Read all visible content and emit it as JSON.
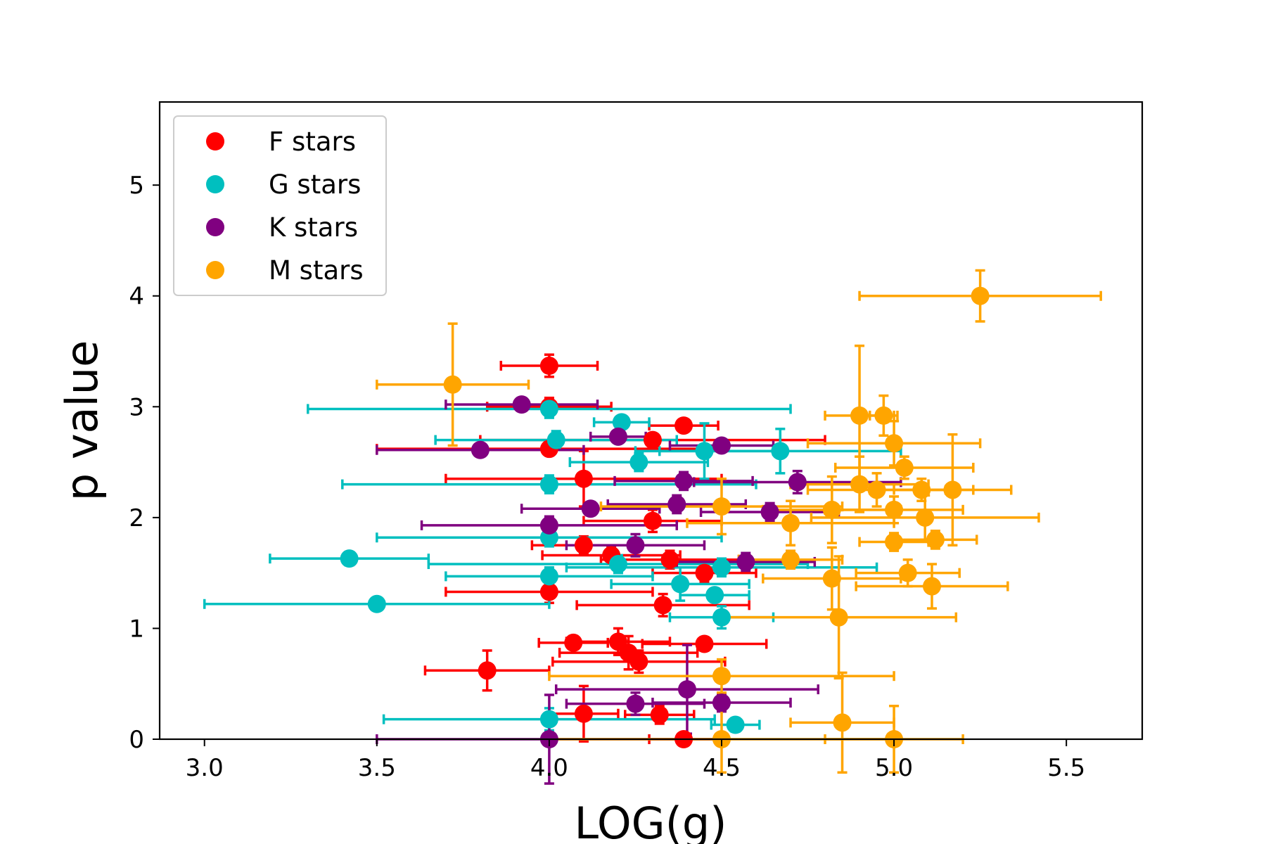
{
  "chart_data": {
    "type": "scatter",
    "title": "",
    "xlabel": "LOG(g)",
    "ylabel": "p value",
    "xlim": [
      2.87,
      5.72
    ],
    "ylim": [
      0,
      5.75
    ],
    "xticks": [
      "3.0",
      "3.5",
      "4.0",
      "4.5",
      "5.0",
      "5.5"
    ],
    "yticks": [
      "0",
      "1",
      "2",
      "3",
      "4",
      "5"
    ],
    "grid": false,
    "legend_position": "top-left",
    "series": [
      {
        "name": "F stars",
        "color": "#ff0000",
        "points": [
          {
            "x": 4.0,
            "y": 3.37,
            "xerr": 0.14,
            "yerr": 0.1
          },
          {
            "x": 4.0,
            "y": 3.0,
            "xerr": 0.18,
            "yerr": 0.08
          },
          {
            "x": 4.39,
            "y": 2.83,
            "xerr": 0.1,
            "yerr": 0.05
          },
          {
            "x": 4.1,
            "y": 2.35,
            "xerr": 0.4,
            "yerr": 0.25
          },
          {
            "x": 4.3,
            "y": 2.7,
            "xerr": 0.5,
            "yerr": 0.05
          },
          {
            "x": 4.0,
            "y": 2.62,
            "xerr": 0.5,
            "yerr": 0.06
          },
          {
            "x": 4.3,
            "y": 1.97,
            "xerr": 0.2,
            "yerr": 0.1
          },
          {
            "x": 4.1,
            "y": 1.75,
            "xerr": 0.15,
            "yerr": 0.08
          },
          {
            "x": 4.18,
            "y": 1.66,
            "xerr": 0.2,
            "yerr": 0.08
          },
          {
            "x": 4.35,
            "y": 1.62,
            "xerr": 0.2,
            "yerr": 0.08
          },
          {
            "x": 4.0,
            "y": 1.33,
            "xerr": 0.3,
            "yerr": 0.1
          },
          {
            "x": 4.33,
            "y": 1.21,
            "xerr": 0.25,
            "yerr": 0.1
          },
          {
            "x": 4.45,
            "y": 1.5,
            "xerr": 0.15,
            "yerr": 0.08
          },
          {
            "x": 4.07,
            "y": 0.87,
            "xerr": 0.1,
            "yerr": 0.06
          },
          {
            "x": 4.2,
            "y": 0.88,
            "xerr": 0.15,
            "yerr": 0.12
          },
          {
            "x": 4.23,
            "y": 0.78,
            "xerr": 0.2,
            "yerr": 0.15
          },
          {
            "x": 4.26,
            "y": 0.7,
            "xerr": 0.25,
            "yerr": 0.1
          },
          {
            "x": 4.45,
            "y": 0.86,
            "xerr": 0.18,
            "yerr": 0.06
          },
          {
            "x": 3.82,
            "y": 0.62,
            "xerr": 0.18,
            "yerr": 0.18
          },
          {
            "x": 4.1,
            "y": 0.23,
            "xerr": 0.1,
            "yerr": 0.25
          },
          {
            "x": 4.32,
            "y": 0.22,
            "xerr": 0.1,
            "yerr": 0.08
          },
          {
            "x": 4.39,
            "y": 0.0,
            "xerr": 0.1,
            "yerr": 0.05
          }
        ]
      },
      {
        "name": "G stars",
        "color": "#00bfbf",
        "points": [
          {
            "x": 4.0,
            "y": 2.98,
            "xerr": 0.7,
            "yerr": 0.08
          },
          {
            "x": 4.21,
            "y": 2.86,
            "xerr": 0.08,
            "yerr": 0.05
          },
          {
            "x": 4.02,
            "y": 2.7,
            "xerr": 0.35,
            "yerr": 0.08
          },
          {
            "x": 4.26,
            "y": 2.5,
            "xerr": 0.2,
            "yerr": 0.08
          },
          {
            "x": 4.67,
            "y": 2.6,
            "xerr": 0.35,
            "yerr": 0.2
          },
          {
            "x": 4.45,
            "y": 2.6,
            "xerr": 0.2,
            "yerr": 0.25
          },
          {
            "x": 4.0,
            "y": 2.3,
            "xerr": 0.6,
            "yerr": 0.08
          },
          {
            "x": 4.0,
            "y": 1.82,
            "xerr": 0.5,
            "yerr": 0.08
          },
          {
            "x": 3.42,
            "y": 1.63,
            "xerr": 0.23,
            "yerr": 0.06
          },
          {
            "x": 4.2,
            "y": 1.58,
            "xerr": 0.55,
            "yerr": 0.08
          },
          {
            "x": 4.0,
            "y": 1.47,
            "xerr": 0.3,
            "yerr": 0.08
          },
          {
            "x": 4.5,
            "y": 1.55,
            "xerr": 0.45,
            "yerr": 0.08
          },
          {
            "x": 4.38,
            "y": 1.4,
            "xerr": 0.2,
            "yerr": 0.15
          },
          {
            "x": 4.48,
            "y": 1.3,
            "xerr": 0.1,
            "yerr": 0.06
          },
          {
            "x": 3.5,
            "y": 1.22,
            "xerr": 0.5,
            "yerr": 0.05
          },
          {
            "x": 4.5,
            "y": 1.1,
            "xerr": 0.15,
            "yerr": 0.1
          },
          {
            "x": 4.54,
            "y": 0.13,
            "xerr": 0.07,
            "yerr": 0.06
          },
          {
            "x": 4.0,
            "y": 0.18,
            "xerr": 0.48,
            "yerr": 0.1
          }
        ]
      },
      {
        "name": "K stars",
        "color": "#800080",
        "points": [
          {
            "x": 3.92,
            "y": 3.02,
            "xerr": 0.22,
            "yerr": 0.05
          },
          {
            "x": 3.8,
            "y": 2.61,
            "xerr": 0.3,
            "yerr": 0.05
          },
          {
            "x": 4.2,
            "y": 2.73,
            "xerr": 0.08,
            "yerr": 0.05
          },
          {
            "x": 4.5,
            "y": 2.65,
            "xerr": 0.15,
            "yerr": 0.05
          },
          {
            "x": 4.39,
            "y": 2.33,
            "xerr": 0.2,
            "yerr": 0.08
          },
          {
            "x": 4.12,
            "y": 2.08,
            "xerr": 0.2,
            "yerr": 0.06
          },
          {
            "x": 4.37,
            "y": 2.12,
            "xerr": 0.2,
            "yerr": 0.08
          },
          {
            "x": 4.64,
            "y": 2.05,
            "xerr": 0.2,
            "yerr": 0.08
          },
          {
            "x": 4.72,
            "y": 2.32,
            "xerr": 0.3,
            "yerr": 0.1
          },
          {
            "x": 4.0,
            "y": 1.93,
            "xerr": 0.37,
            "yerr": 0.08
          },
          {
            "x": 4.25,
            "y": 1.75,
            "xerr": 0.2,
            "yerr": 0.1
          },
          {
            "x": 4.57,
            "y": 1.6,
            "xerr": 0.2,
            "yerr": 0.08
          },
          {
            "x": 4.4,
            "y": 0.45,
            "xerr": 0.38,
            "yerr": 0.4
          },
          {
            "x": 4.25,
            "y": 0.32,
            "xerr": 0.2,
            "yerr": 0.1
          },
          {
            "x": 4.5,
            "y": 0.33,
            "xerr": 0.2,
            "yerr": 0.08
          },
          {
            "x": 4.0,
            "y": 0.0,
            "xerr": 0.5,
            "yerr": 0.4
          }
        ]
      },
      {
        "name": "M stars",
        "color": "#ffa500",
        "points": [
          {
            "x": 5.25,
            "y": 4.0,
            "xerr": 0.35,
            "yerr": 0.23
          },
          {
            "x": 3.72,
            "y": 3.2,
            "xerr": 0.22,
            "yerr": 0.55
          },
          {
            "x": 4.9,
            "y": 2.92,
            "xerr": 0.1,
            "yerr": 0.63
          },
          {
            "x": 4.97,
            "y": 2.92,
            "xerr": 0.04,
            "yerr": 0.18
          },
          {
            "x": 5.0,
            "y": 2.67,
            "xerr": 0.25,
            "yerr": 0.2
          },
          {
            "x": 5.03,
            "y": 2.45,
            "xerr": 0.2,
            "yerr": 0.1
          },
          {
            "x": 4.9,
            "y": 2.3,
            "xerr": 0.2,
            "yerr": 0.25
          },
          {
            "x": 4.95,
            "y": 2.25,
            "xerr": 0.2,
            "yerr": 0.15
          },
          {
            "x": 5.08,
            "y": 2.25,
            "xerr": 0.15,
            "yerr": 0.1
          },
          {
            "x": 5.17,
            "y": 2.25,
            "xerr": 0.17,
            "yerr": 0.5
          },
          {
            "x": 5.0,
            "y": 2.07,
            "xerr": 0.2,
            "yerr": 0.12
          },
          {
            "x": 4.82,
            "y": 2.07,
            "xerr": 0.2,
            "yerr": 0.3
          },
          {
            "x": 5.09,
            "y": 2.0,
            "xerr": 0.33,
            "yerr": 0.2
          },
          {
            "x": 4.7,
            "y": 1.95,
            "xerr": 0.3,
            "yerr": 0.2
          },
          {
            "x": 5.0,
            "y": 1.78,
            "xerr": 0.1,
            "yerr": 0.08
          },
          {
            "x": 5.12,
            "y": 1.8,
            "xerr": 0.12,
            "yerr": 0.08
          },
          {
            "x": 4.7,
            "y": 1.62,
            "xerr": 0.15,
            "yerr": 0.08
          },
          {
            "x": 5.04,
            "y": 1.5,
            "xerr": 0.15,
            "yerr": 0.12
          },
          {
            "x": 4.82,
            "y": 1.45,
            "xerr": 0.2,
            "yerr": 0.28
          },
          {
            "x": 5.11,
            "y": 1.38,
            "xerr": 0.22,
            "yerr": 0.2
          },
          {
            "x": 4.84,
            "y": 1.1,
            "xerr": 0.34,
            "yerr": 0.55
          },
          {
            "x": 4.5,
            "y": 0.57,
            "xerr": 0.5,
            "yerr": 0.15
          },
          {
            "x": 4.85,
            "y": 0.15,
            "xerr": 0.15,
            "yerr": 0.45
          },
          {
            "x": 4.5,
            "y": 0.0,
            "xerr": 0.5,
            "yerr": 0.3
          },
          {
            "x": 5.0,
            "y": 0.0,
            "xerr": 0.2,
            "yerr": 0.3
          },
          {
            "x": 4.5,
            "y": 2.1,
            "xerr": 0.35,
            "yerr": 0.25
          }
        ]
      }
    ]
  }
}
